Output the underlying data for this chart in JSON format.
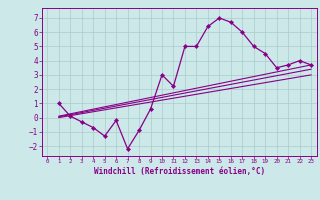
{
  "background_color": "#cce8e8",
  "grid_color": "#aacccc",
  "line_color": "#880088",
  "marker_color": "#880088",
  "xlim": [
    -0.5,
    23.5
  ],
  "ylim": [
    -2.7,
    7.7
  ],
  "xlabel": "Windchill (Refroidissement éolien,°C)",
  "xticks": [
    0,
    1,
    2,
    3,
    4,
    5,
    6,
    7,
    8,
    9,
    10,
    11,
    12,
    13,
    14,
    15,
    16,
    17,
    18,
    19,
    20,
    21,
    22,
    23
  ],
  "yticks": [
    -2,
    -1,
    0,
    1,
    2,
    3,
    4,
    5,
    6,
    7
  ],
  "curve1_x": [
    1,
    2,
    3,
    4,
    5,
    6,
    7,
    8,
    9,
    10,
    11,
    12,
    13,
    14,
    15,
    16,
    17,
    18,
    19,
    20,
    21,
    22,
    23
  ],
  "curve1_y": [
    1.0,
    0.1,
    -0.3,
    -0.7,
    -1.3,
    -0.2,
    -2.2,
    -0.9,
    0.6,
    3.0,
    2.2,
    5.0,
    5.0,
    6.4,
    7.0,
    6.7,
    6.0,
    5.0,
    4.5,
    3.5,
    3.7,
    4.0,
    3.7
  ],
  "line1_x": [
    1,
    23
  ],
  "line1_y": [
    0.1,
    3.7
  ],
  "line2_x": [
    1,
    23
  ],
  "line2_y": [
    0.05,
    3.4
  ],
  "line3_x": [
    1,
    23
  ],
  "line3_y": [
    0.0,
    3.0
  ]
}
